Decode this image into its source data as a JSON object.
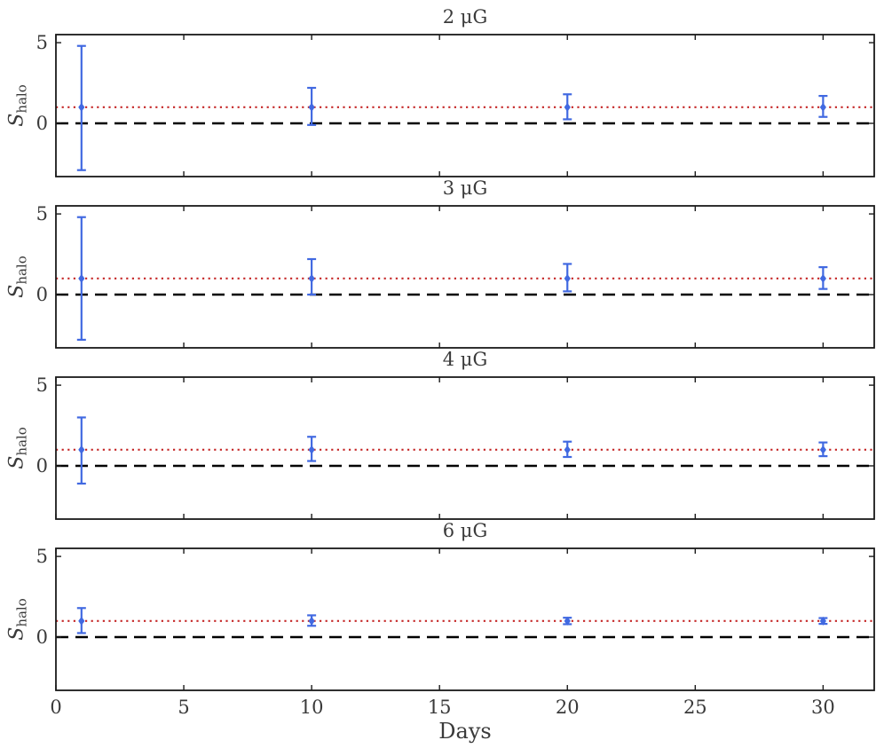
{
  "figure": {
    "xlabel": "Days",
    "ylabel": "S_halo",
    "ylabel_main": "S",
    "ylabel_sub": "halo",
    "colors": {
      "marker": "#4169e1",
      "ref_line_one": "#c52727",
      "ref_line_zero": "#000000",
      "axis": "#1a1a1a",
      "text": "#3a3a3a"
    }
  },
  "chart_data": [
    {
      "type": "scatter",
      "title": "2 μG",
      "ylabel": "S_halo",
      "x": [
        1,
        10,
        20,
        30
      ],
      "y": [
        1,
        1,
        1,
        1
      ],
      "yerr_plus": [
        3.8,
        1.2,
        0.8,
        0.7
      ],
      "yerr_minus": [
        3.9,
        1.1,
        0.75,
        0.6
      ],
      "hlines": [
        {
          "y": 1,
          "style": "dotted",
          "color": "#c52727"
        },
        {
          "y": 0,
          "style": "dashed",
          "color": "#000000"
        }
      ],
      "xlim": [
        0,
        32
      ],
      "ylim": [
        -3.3,
        5.5
      ],
      "xticks": [
        0,
        5,
        10,
        15,
        20,
        25,
        30
      ],
      "yticks": [
        0,
        5
      ],
      "marker_color": "#4169e1",
      "grid": false,
      "legend": null
    },
    {
      "type": "scatter",
      "title": "3 μG",
      "ylabel": "S_halo",
      "x": [
        1,
        10,
        20,
        30
      ],
      "y": [
        1,
        1,
        1,
        1
      ],
      "yerr_plus": [
        3.8,
        1.2,
        0.9,
        0.7
      ],
      "yerr_minus": [
        3.8,
        1.0,
        0.8,
        0.65
      ],
      "hlines": [
        {
          "y": 1,
          "style": "dotted",
          "color": "#c52727"
        },
        {
          "y": 0,
          "style": "dashed",
          "color": "#000000"
        }
      ],
      "xlim": [
        0,
        32
      ],
      "ylim": [
        -3.3,
        5.5
      ],
      "xticks": [
        0,
        5,
        10,
        15,
        20,
        25,
        30
      ],
      "yticks": [
        0,
        5
      ],
      "marker_color": "#4169e1",
      "grid": false,
      "legend": null
    },
    {
      "type": "scatter",
      "title": "4 μG",
      "ylabel": "S_halo",
      "x": [
        1,
        10,
        20,
        30
      ],
      "y": [
        1,
        1,
        1,
        1
      ],
      "yerr_plus": [
        2.0,
        0.8,
        0.5,
        0.45
      ],
      "yerr_minus": [
        2.1,
        0.7,
        0.45,
        0.4
      ],
      "hlines": [
        {
          "y": 1,
          "style": "dotted",
          "color": "#c52727"
        },
        {
          "y": 0,
          "style": "dashed",
          "color": "#000000"
        }
      ],
      "xlim": [
        0,
        32
      ],
      "ylim": [
        -3.3,
        5.5
      ],
      "xticks": [
        0,
        5,
        10,
        15,
        20,
        25,
        30
      ],
      "yticks": [
        0,
        5
      ],
      "marker_color": "#4169e1",
      "grid": false,
      "legend": null
    },
    {
      "type": "scatter",
      "title": "6 μG",
      "ylabel": "S_halo",
      "x": [
        1,
        10,
        20,
        30
      ],
      "y": [
        1,
        1,
        1,
        1
      ],
      "yerr_plus": [
        0.8,
        0.35,
        0.2,
        0.18
      ],
      "yerr_minus": [
        0.75,
        0.3,
        0.2,
        0.18
      ],
      "hlines": [
        {
          "y": 1,
          "style": "dotted",
          "color": "#c52727"
        },
        {
          "y": 0,
          "style": "dashed",
          "color": "#000000"
        }
      ],
      "xlim": [
        0,
        32
      ],
      "ylim": [
        -3.3,
        5.5
      ],
      "xticks": [
        0,
        5,
        10,
        15,
        20,
        25,
        30
      ],
      "yticks": [
        0,
        5
      ],
      "marker_color": "#4169e1",
      "grid": false,
      "legend": null
    }
  ]
}
